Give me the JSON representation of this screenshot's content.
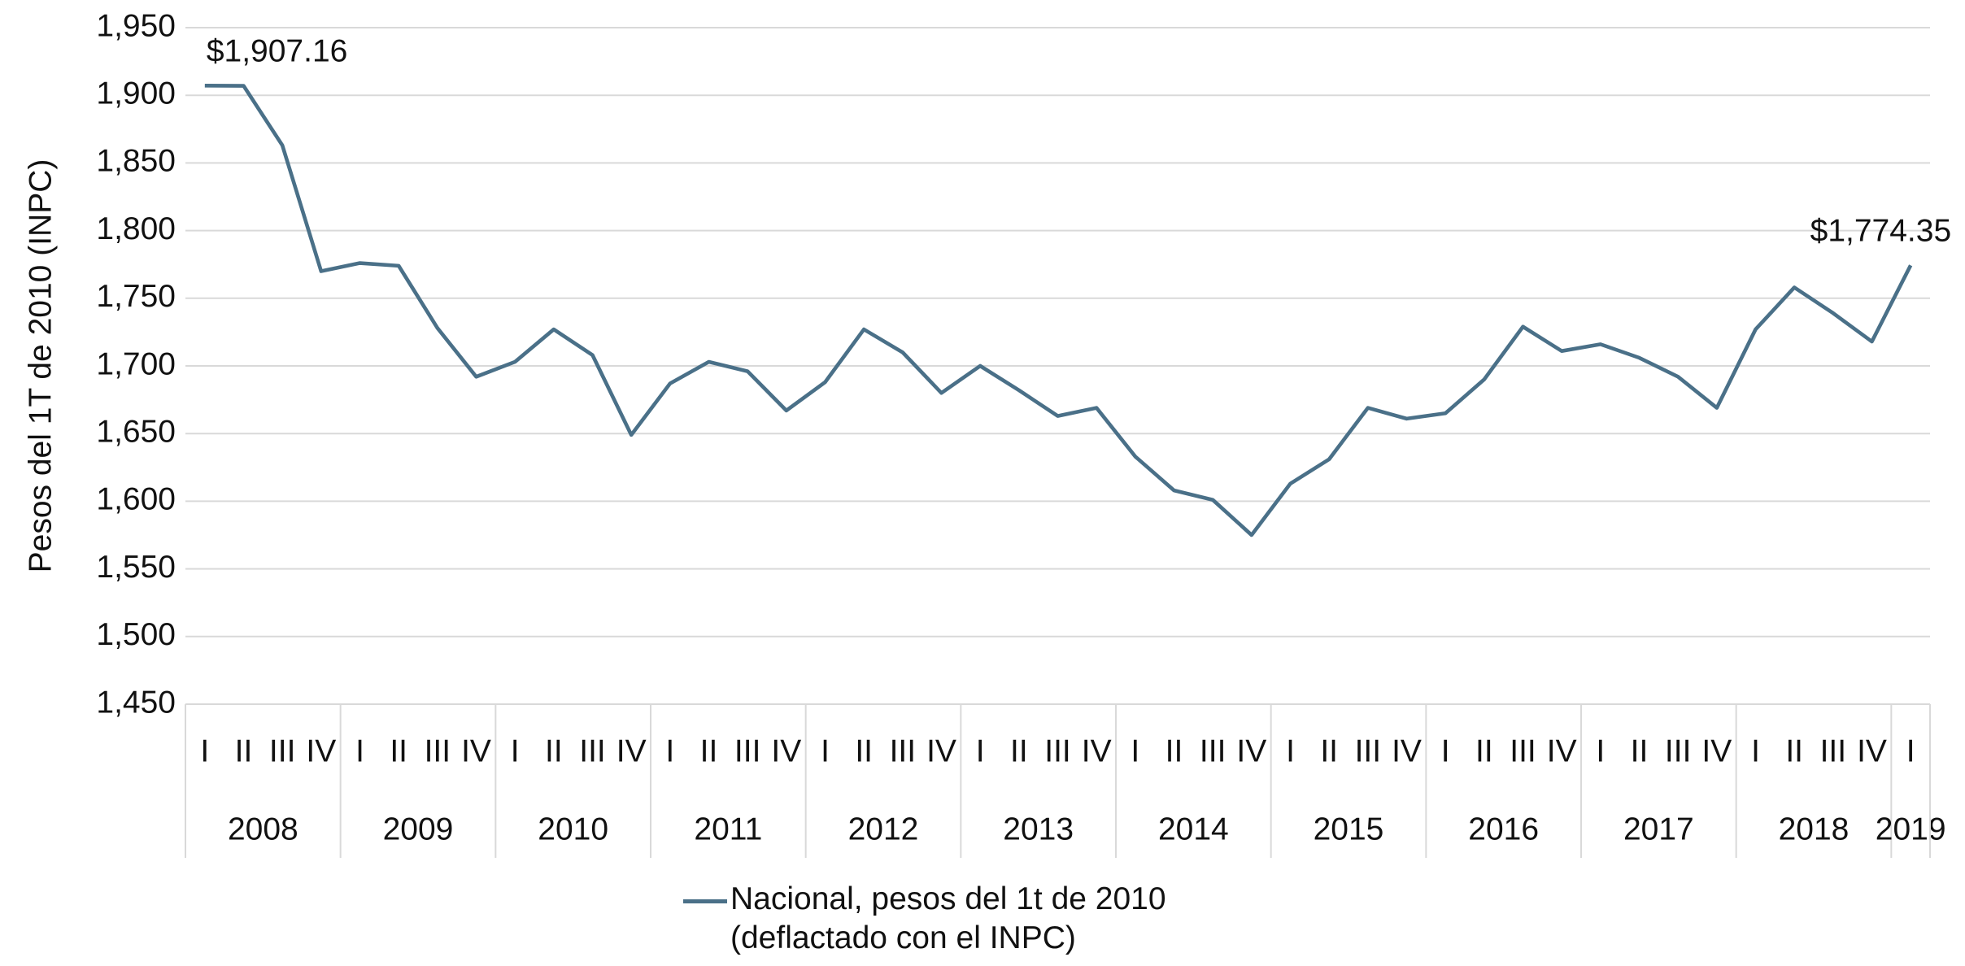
{
  "chart_data": {
    "type": "line",
    "y_label": "Pesos del 1T de 2010 (INPC)",
    "categories": [
      "I",
      "II",
      "III",
      "IV",
      "I",
      "II",
      "III",
      "IV",
      "I",
      "II",
      "III",
      "IV",
      "I",
      "II",
      "III",
      "IV",
      "I",
      "II",
      "III",
      "IV",
      "I",
      "II",
      "III",
      "IV",
      "I",
      "II",
      "III",
      "IV",
      "I",
      "II",
      "III",
      "IV",
      "I",
      "II",
      "III",
      "IV",
      "I",
      "II",
      "III",
      "IV",
      "I",
      "II",
      "III",
      "IV",
      "I"
    ],
    "groups": [
      "2008",
      "2009",
      "2010",
      "2011",
      "2012",
      "2013",
      "2014",
      "2015",
      "2016",
      "2017",
      "2018",
      "2019"
    ],
    "series": [
      {
        "name": "Nacional, pesos del 1t de 2010\n(deflactado con el INPC)",
        "color": "#4a7088",
        "values": [
          1907.16,
          1907,
          1863,
          1770,
          1776,
          1774,
          1728,
          1692,
          1703,
          1727,
          1708,
          1649,
          1687,
          1703,
          1696,
          1667,
          1688,
          1727,
          1710,
          1680,
          1700,
          1682,
          1663,
          1669,
          1633,
          1608,
          1601,
          1575,
          1613,
          1631,
          1669,
          1661,
          1665,
          1690,
          1729,
          1711,
          1716,
          1706,
          1692,
          1669,
          1727,
          1758,
          1739,
          1718,
          1774.35
        ],
        "value_labels": [
          "$1,907.16",
          null,
          null,
          null,
          null,
          null,
          null,
          null,
          null,
          null,
          null,
          null,
          null,
          null,
          null,
          null,
          null,
          null,
          null,
          null,
          null,
          null,
          null,
          null,
          null,
          null,
          null,
          null,
          null,
          null,
          null,
          null,
          null,
          null,
          null,
          null,
          null,
          null,
          null,
          null,
          null,
          null,
          null,
          null,
          "$1,774.35"
        ]
      }
    ],
    "ylim": [
      1450,
      1950
    ],
    "yticks": [
      {
        "value": 1450,
        "label": "1,450"
      },
      {
        "value": 1500,
        "label": "1,500"
      },
      {
        "value": 1550,
        "label": "1,550"
      },
      {
        "value": 1600,
        "label": "1,600"
      },
      {
        "value": 1650,
        "label": "1,650"
      },
      {
        "value": 1700,
        "label": "1,700"
      },
      {
        "value": 1750,
        "label": "1,750"
      },
      {
        "value": 1800,
        "label": "1,800"
      },
      {
        "value": 1850,
        "label": "1,850"
      },
      {
        "value": 1900,
        "label": "1,900"
      },
      {
        "value": 1950,
        "label": "1,950"
      }
    ],
    "grid": true,
    "legend": "bottom"
  }
}
